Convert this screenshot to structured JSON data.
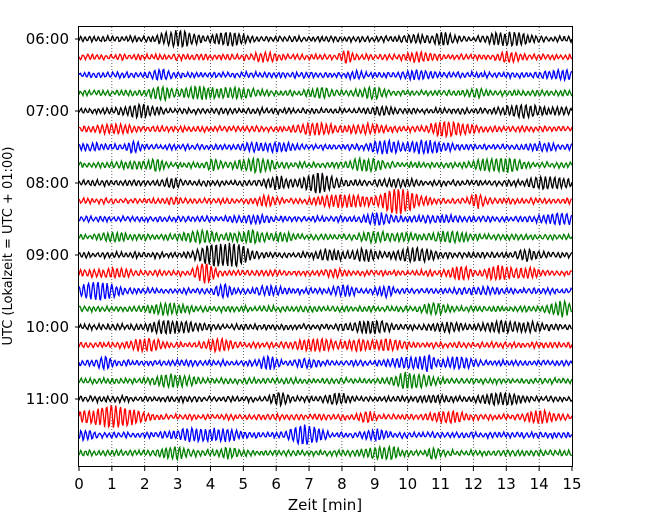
{
  "chart_data": {
    "type": "line",
    "title": "",
    "xlabel": "Zeit  [min]",
    "ylabel": "UTC (Lokalzeit = UTC + 01:00)",
    "xlim": [
      0,
      15
    ],
    "x_ticks": [
      "0",
      "1",
      "2",
      "3",
      "4",
      "5",
      "6",
      "7",
      "8",
      "9",
      "10",
      "11",
      "12",
      "13",
      "14",
      "15"
    ],
    "y_ticks": [
      "06:00",
      "07:00",
      "08:00",
      "09:00",
      "10:00",
      "11:00"
    ],
    "grid": "vertical dotted",
    "trace_start": "06:00",
    "trace_interval_min": 15,
    "trace_count": 24,
    "colors": [
      "#000000",
      "#ff0000",
      "#0000ff",
      "#008000"
    ]
  }
}
